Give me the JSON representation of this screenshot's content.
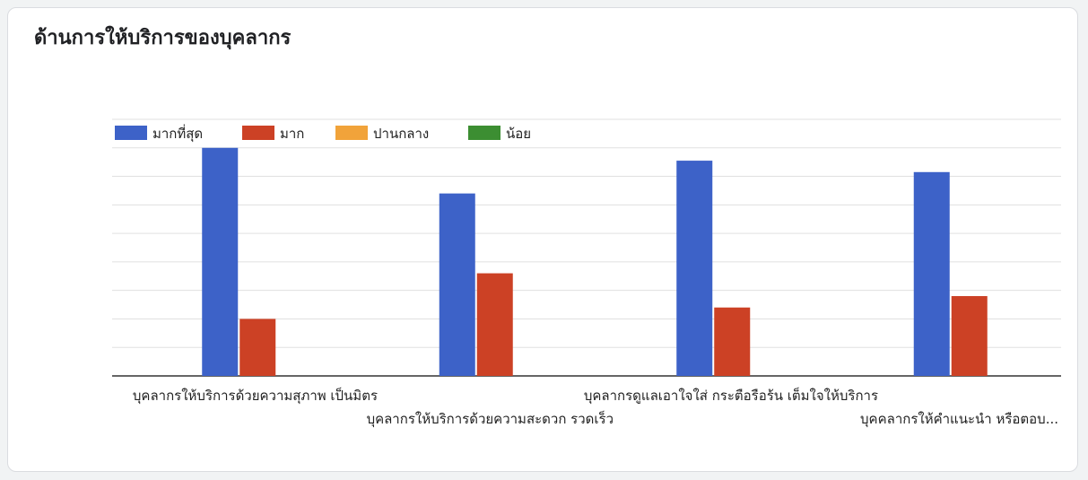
{
  "title": "ด้านการให้บริการของบุคลากร",
  "chart_data": {
    "type": "bar",
    "categories": [
      "บุคลากรให้บริการด้วยความสุภาพ เป็นมิตร",
      "บุคลากรให้บริการด้วยความสะดวก รวดเร็ว",
      "บุคลากรดูแลเอาใจใส่ กระตือรือร้น เต็มใจให้บริการ",
      "บุคคลากรให้คำแนะนำ หรือตอบ..."
    ],
    "series": [
      {
        "name": "มากที่สุด",
        "color": "#3d62c8",
        "values": [
          8.0,
          6.4,
          7.55,
          7.15
        ]
      },
      {
        "name": "มาก",
        "color": "#cc4125",
        "values": [
          2.0,
          3.6,
          2.4,
          2.8
        ]
      },
      {
        "name": "ปานกลาง",
        "color": "#f1a33a",
        "values": [
          0,
          0,
          0,
          0
        ]
      },
      {
        "name": "น้อย",
        "color": "#3c8e32",
        "values": [
          0,
          0,
          0,
          0
        ]
      }
    ],
    "ylim": [
      0,
      9
    ],
    "grid": true,
    "legend": "top-left"
  }
}
